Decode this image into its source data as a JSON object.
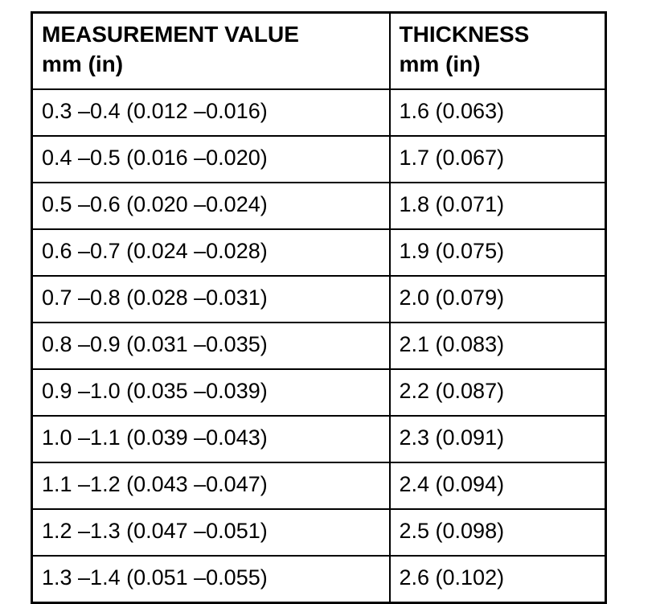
{
  "colors": {
    "background": "#ffffff",
    "border": "#000000",
    "text": "#000000"
  },
  "table": {
    "columns": [
      {
        "title": "MEASUREMENT VALUE",
        "unit": "mm (in)"
      },
      {
        "title": "THICKNESS",
        "unit": "mm (in)"
      }
    ],
    "rows": [
      [
        "0.3 –0.4 (0.012 –0.016)",
        "1.6 (0.063)"
      ],
      [
        "0.4 –0.5 (0.016 –0.020)",
        "1.7 (0.067)"
      ],
      [
        "0.5 –0.6 (0.020 –0.024)",
        "1.8 (0.071)"
      ],
      [
        "0.6 –0.7 (0.024 –0.028)",
        "1.9 (0.075)"
      ],
      [
        "0.7 –0.8 (0.028 –0.031)",
        "2.0 (0.079)"
      ],
      [
        "0.8 –0.9 (0.031 –0.035)",
        "2.1 (0.083)"
      ],
      [
        "0.9 –1.0 (0.035 –0.039)",
        "2.2 (0.087)"
      ],
      [
        "1.0 –1.1 (0.039 –0.043)",
        "2.3 (0.091)"
      ],
      [
        "1.1 –1.2 (0.043 –0.047)",
        "2.4 (0.094)"
      ],
      [
        "1.2 –1.3 (0.047 –0.051)",
        "2.5 (0.098)"
      ],
      [
        "1.3 –1.4 (0.051 –0.055)",
        "2.6 (0.102)"
      ]
    ]
  }
}
